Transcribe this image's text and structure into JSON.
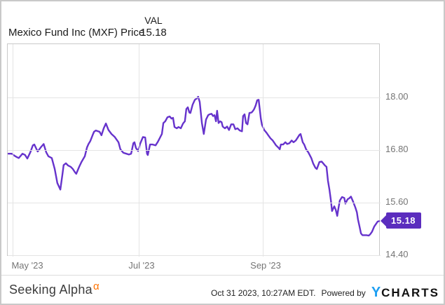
{
  "header": {
    "title": "Mexico Fund Inc (MXF) Price",
    "val_label": "VAL",
    "val_value": "15.18"
  },
  "badge": {
    "last_price_label": "15.18"
  },
  "footer": {
    "brand": "Seeking Alpha",
    "brand_sup": "α",
    "timestamp": "Oct 31 2023, 10:27AM EDT.",
    "powered_by": "Powered by",
    "logo_y": "Y",
    "logo_charts": "CHARTS"
  },
  "colors": {
    "line": "#6633cc",
    "badge_bg": "#5b2dbe",
    "badge_text": "#ffffff",
    "grid": "#e4e4e4",
    "plot_border": "#c9c9c9",
    "axis_text": "#757575",
    "alpha_orange": "#ff7200",
    "ycharts_blue": "#1e9ff2"
  },
  "chart_data": {
    "type": "line",
    "title": "Mexico Fund Inc (MXF) Price",
    "xlabel": "",
    "ylabel": "",
    "legend": "none",
    "grid": true,
    "last_value": 15.18,
    "ylim": [
      14.37,
      19.22
    ],
    "yticks": [
      {
        "label": "18.00",
        "value": 18.0
      },
      {
        "label": "16.80",
        "value": 16.8
      },
      {
        "label": "15.60",
        "value": 15.6
      },
      {
        "label": "14.40",
        "value": 14.4
      }
    ],
    "xticks": [
      "May '23",
      "Jul '23",
      "Sep '23"
    ],
    "x_range_note": "late Apr 2023 through Oct 31 2023, t is fraction of x-axis",
    "points": [
      [
        0,
        16.72
      ],
      [
        0.009,
        16.72
      ],
      [
        0.017,
        16.67
      ],
      [
        0.023,
        16.64
      ],
      [
        0.028,
        16.62
      ],
      [
        0.038,
        16.72
      ],
      [
        0.045,
        16.69
      ],
      [
        0.051,
        16.61
      ],
      [
        0.059,
        16.75
      ],
      [
        0.066,
        16.91
      ],
      [
        0.07,
        16.93
      ],
      [
        0.076,
        16.82
      ],
      [
        0.079,
        16.77
      ],
      [
        0.087,
        16.86
      ],
      [
        0.095,
        16.94
      ],
      [
        0.102,
        16.75
      ],
      [
        0.108,
        16.66
      ],
      [
        0.117,
        16.62
      ],
      [
        0.125,
        16.37
      ],
      [
        0.132,
        16.05
      ],
      [
        0.14,
        15.9
      ],
      [
        0.146,
        16.26
      ],
      [
        0.149,
        16.46
      ],
      [
        0.155,
        16.5
      ],
      [
        0.161,
        16.45
      ],
      [
        0.168,
        16.42
      ],
      [
        0.174,
        16.37
      ],
      [
        0.18,
        16.29
      ],
      [
        0.183,
        16.26
      ],
      [
        0.191,
        16.42
      ],
      [
        0.197,
        16.53
      ],
      [
        0.206,
        16.66
      ],
      [
        0.212,
        16.86
      ],
      [
        0.216,
        16.94
      ],
      [
        0.221,
        17.01
      ],
      [
        0.227,
        17.14
      ],
      [
        0.231,
        17.22
      ],
      [
        0.236,
        17.25
      ],
      [
        0.242,
        17.23
      ],
      [
        0.246,
        17.22
      ],
      [
        0.251,
        17.14
      ],
      [
        0.257,
        17.3
      ],
      [
        0.263,
        17.41
      ],
      [
        0.27,
        17.26
      ],
      [
        0.278,
        17.17
      ],
      [
        0.287,
        17.1
      ],
      [
        0.297,
        16.98
      ],
      [
        0.302,
        16.82
      ],
      [
        0.31,
        16.74
      ],
      [
        0.318,
        16.72
      ],
      [
        0.325,
        16.7
      ],
      [
        0.331,
        16.72
      ],
      [
        0.337,
        16.96
      ],
      [
        0.34,
        16.98
      ],
      [
        0.344,
        16.85
      ],
      [
        0.35,
        16.78
      ],
      [
        0.355,
        16.94
      ],
      [
        0.359,
        17.02
      ],
      [
        0.363,
        17.1
      ],
      [
        0.369,
        17.09
      ],
      [
        0.374,
        16.72
      ],
      [
        0.376,
        16.69
      ],
      [
        0.382,
        16.93
      ],
      [
        0.389,
        16.93
      ],
      [
        0.397,
        16.91
      ],
      [
        0.403,
        16.99
      ],
      [
        0.408,
        17.07
      ],
      [
        0.414,
        17.17
      ],
      [
        0.418,
        17.42
      ],
      [
        0.423,
        17.46
      ],
      [
        0.429,
        17.55
      ],
      [
        0.435,
        17.57
      ],
      [
        0.44,
        17.52
      ],
      [
        0.444,
        17.54
      ],
      [
        0.448,
        17.33
      ],
      [
        0.454,
        17.3
      ],
      [
        0.459,
        17.33
      ],
      [
        0.465,
        17.3
      ],
      [
        0.471,
        17.41
      ],
      [
        0.476,
        17.46
      ],
      [
        0.48,
        17.74
      ],
      [
        0.484,
        17.78
      ],
      [
        0.488,
        17.66
      ],
      [
        0.491,
        17.65
      ],
      [
        0.497,
        17.84
      ],
      [
        0.503,
        17.95
      ],
      [
        0.508,
        17.98
      ],
      [
        0.512,
        18.02
      ],
      [
        0.516,
        17.9
      ],
      [
        0.522,
        17.42
      ],
      [
        0.527,
        17.17
      ],
      [
        0.533,
        17.5
      ],
      [
        0.539,
        17.6
      ],
      [
        0.543,
        17.62
      ],
      [
        0.548,
        17.63
      ],
      [
        0.552,
        17.58
      ],
      [
        0.556,
        17.6
      ],
      [
        0.56,
        17.46
      ],
      [
        0.563,
        17.7
      ],
      [
        0.567,
        17.42
      ],
      [
        0.571,
        17.46
      ],
      [
        0.575,
        17.44
      ],
      [
        0.578,
        17.34
      ],
      [
        0.584,
        17.3
      ],
      [
        0.59,
        17.34
      ],
      [
        0.595,
        17.26
      ],
      [
        0.601,
        17.39
      ],
      [
        0.607,
        17.39
      ],
      [
        0.612,
        17.28
      ],
      [
        0.618,
        17.3
      ],
      [
        0.624,
        17.25
      ],
      [
        0.63,
        17.23
      ],
      [
        0.633,
        17.58
      ],
      [
        0.637,
        17.62
      ],
      [
        0.641,
        17.42
      ],
      [
        0.645,
        17.39
      ],
      [
        0.65,
        17.65
      ],
      [
        0.656,
        17.66
      ],
      [
        0.66,
        17.7
      ],
      [
        0.663,
        17.74
      ],
      [
        0.667,
        17.82
      ],
      [
        0.671,
        17.94
      ],
      [
        0.675,
        17.95
      ],
      [
        0.681,
        17.52
      ],
      [
        0.684,
        17.38
      ],
      [
        0.69,
        17.26
      ],
      [
        0.696,
        17.2
      ],
      [
        0.701,
        17.14
      ],
      [
        0.707,
        17.07
      ],
      [
        0.713,
        17.02
      ],
      [
        0.718,
        16.96
      ],
      [
        0.722,
        16.91
      ],
      [
        0.728,
        16.86
      ],
      [
        0.732,
        16.82
      ],
      [
        0.735,
        16.93
      ],
      [
        0.741,
        16.93
      ],
      [
        0.747,
        16.98
      ],
      [
        0.752,
        16.94
      ],
      [
        0.758,
        16.96
      ],
      [
        0.764,
        17.02
      ],
      [
        0.769,
        16.98
      ],
      [
        0.775,
        17.02
      ],
      [
        0.779,
        17.07
      ],
      [
        0.785,
        17.15
      ],
      [
        0.788,
        17.17
      ],
      [
        0.794,
        16.98
      ],
      [
        0.798,
        16.93
      ],
      [
        0.803,
        16.82
      ],
      [
        0.809,
        16.75
      ],
      [
        0.817,
        16.62
      ],
      [
        0.822,
        16.5
      ],
      [
        0.828,
        16.4
      ],
      [
        0.832,
        16.37
      ],
      [
        0.839,
        16.53
      ],
      [
        0.845,
        16.54
      ],
      [
        0.851,
        16.48
      ],
      [
        0.854,
        16.45
      ],
      [
        0.858,
        16.42
      ],
      [
        0.862,
        16.1
      ],
      [
        0.866,
        15.9
      ],
      [
        0.87,
        15.65
      ],
      [
        0.873,
        15.41
      ],
      [
        0.879,
        15.52
      ],
      [
        0.883,
        15.44
      ],
      [
        0.887,
        15.3
      ],
      [
        0.89,
        15.46
      ],
      [
        0.894,
        15.65
      ],
      [
        0.9,
        15.73
      ],
      [
        0.906,
        15.71
      ],
      [
        0.909,
        15.58
      ],
      [
        0.915,
        15.68
      ],
      [
        0.919,
        15.7
      ],
      [
        0.924,
        15.74
      ],
      [
        0.93,
        15.62
      ],
      [
        0.936,
        15.49
      ],
      [
        0.94,
        15.38
      ],
      [
        0.943,
        15.22
      ],
      [
        0.947,
        15.06
      ],
      [
        0.951,
        14.9
      ],
      [
        0.955,
        14.86
      ],
      [
        0.96,
        14.86
      ],
      [
        0.966,
        14.86
      ],
      [
        0.972,
        14.85
      ],
      [
        0.976,
        14.88
      ],
      [
        0.981,
        14.94
      ],
      [
        0.987,
        15.06
      ],
      [
        0.992,
        15.12
      ],
      [
        0.996,
        15.17
      ],
      [
        1,
        15.18
      ]
    ]
  }
}
